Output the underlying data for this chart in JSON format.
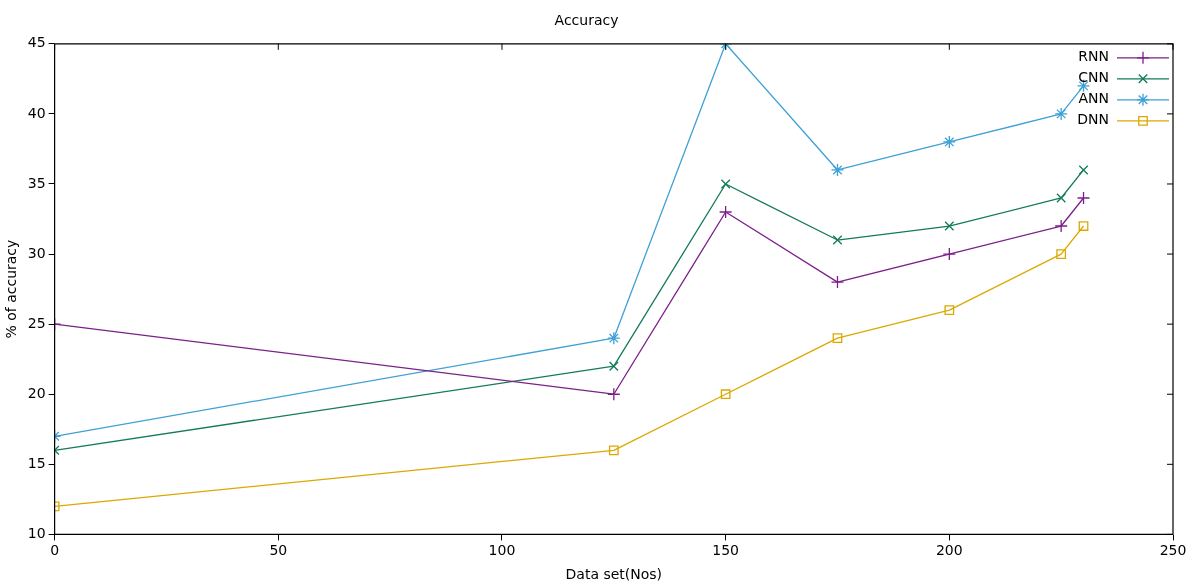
{
  "chart_data": {
    "type": "line",
    "title": "Accuracy",
    "xlabel": "Data set(Nos)",
    "ylabel": "% of accuracy",
    "x": [
      0,
      125,
      150,
      175,
      200,
      225,
      230
    ],
    "xlim": [
      0,
      250
    ],
    "xticks": [
      0,
      50,
      100,
      150,
      200,
      250
    ],
    "ylim": [
      10,
      45
    ],
    "yticks": [
      10,
      15,
      20,
      25,
      30,
      35,
      40,
      45
    ],
    "grid": false,
    "legend": "top right",
    "line_style": "solid",
    "series": [
      {
        "name": "RNN",
        "color": "#7b1f8a",
        "marker": "plus",
        "values": [
          25,
          20,
          33,
          28,
          30,
          32,
          34
        ]
      },
      {
        "name": "CNN",
        "color": "#137a5a",
        "marker": "x",
        "values": [
          16,
          22,
          35,
          31,
          32,
          34,
          36
        ]
      },
      {
        "name": "ANN",
        "color": "#3fa0d6",
        "marker": "cross",
        "values": [
          17,
          24,
          45,
          36,
          38,
          40,
          42
        ]
      },
      {
        "name": "DNN",
        "color": "#dca800",
        "marker": "square",
        "values": [
          12,
          16,
          20,
          24,
          26,
          30,
          32
        ]
      }
    ]
  }
}
